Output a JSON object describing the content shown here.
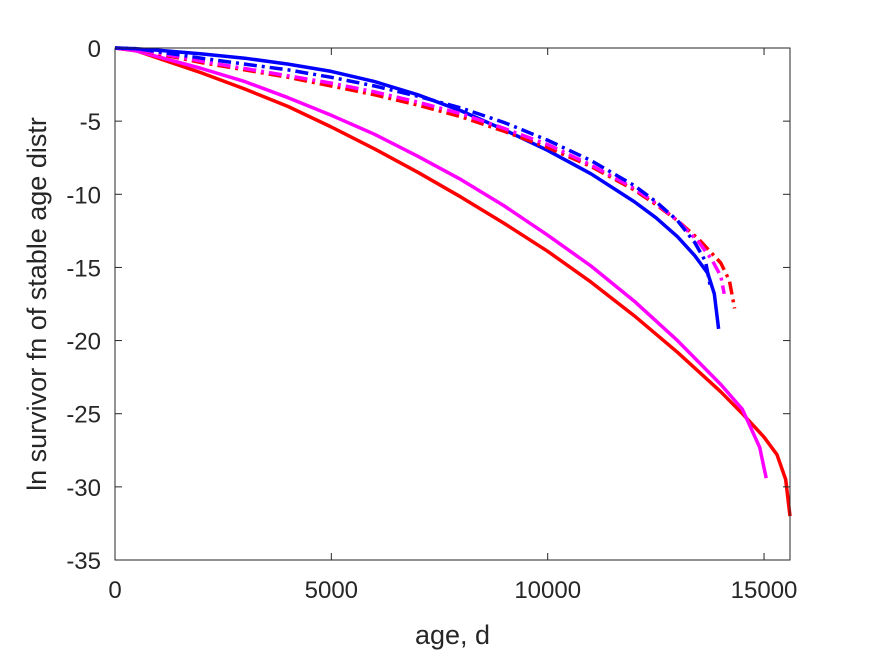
{
  "chart_data": {
    "type": "line",
    "title": "",
    "xlabel": "age, d",
    "ylabel": "ln survivor fn of stable age distr",
    "xlim": [
      0,
      15600
    ],
    "ylim": [
      -35,
      0
    ],
    "xticks": [
      0,
      5000,
      10000,
      15000
    ],
    "xtick_labels": [
      "0",
      "5000",
      "10000",
      "15000"
    ],
    "yticks": [
      0,
      -5,
      -10,
      -15,
      -20,
      -25,
      -30,
      -35
    ],
    "ytick_labels": [
      "0",
      "-5",
      "-10",
      "-15",
      "-20",
      "-25",
      "-30",
      "-35"
    ],
    "grid": false,
    "legend": "none",
    "series": [
      {
        "color": "#ff0000",
        "style": "solid",
        "x": [
          0,
          500,
          1000,
          2000,
          3000,
          4000,
          5000,
          6000,
          7000,
          8000,
          9000,
          10000,
          11000,
          12000,
          13000,
          14000,
          14500,
          15000,
          15300,
          15500,
          15600
        ],
        "y": [
          0,
          -0.2,
          -0.7,
          -1.7,
          -2.8,
          -4.0,
          -5.4,
          -6.9,
          -8.5,
          -10.2,
          -12.0,
          -13.9,
          -16.0,
          -18.3,
          -20.8,
          -23.5,
          -25.0,
          -26.6,
          -27.8,
          -29.5,
          -32.0
        ]
      },
      {
        "color": "#ff00ff",
        "style": "solid",
        "x": [
          0,
          500,
          1000,
          2000,
          3000,
          4000,
          5000,
          6000,
          7000,
          8000,
          9000,
          10000,
          11000,
          12000,
          13000,
          14000,
          14500,
          14900,
          15050
        ],
        "y": [
          0,
          -0.2,
          -0.6,
          -1.4,
          -2.3,
          -3.4,
          -4.6,
          -5.9,
          -7.4,
          -9.0,
          -10.8,
          -12.8,
          -14.9,
          -17.3,
          -20.0,
          -23.0,
          -24.7,
          -27.3,
          -29.4
        ]
      },
      {
        "color": "#0000ff",
        "style": "solid",
        "x": [
          0,
          500,
          1000,
          2000,
          3000,
          4000,
          5000,
          6000,
          7000,
          8000,
          9000,
          10000,
          11000,
          12000,
          12500,
          13000,
          13400,
          13700,
          13850,
          13950
        ],
        "y": [
          0,
          -0.05,
          -0.15,
          -0.4,
          -0.7,
          -1.1,
          -1.6,
          -2.3,
          -3.2,
          -4.3,
          -5.6,
          -7.0,
          -8.6,
          -10.5,
          -11.6,
          -12.9,
          -14.2,
          -15.4,
          -16.8,
          -19.2
        ]
      },
      {
        "color": "#ff0000",
        "style": "dashdot",
        "x": [
          0,
          500,
          1000,
          2000,
          3000,
          4000,
          5000,
          6000,
          7000,
          8000,
          9000,
          10000,
          11000,
          12000,
          12500,
          13000,
          13500,
          14000,
          14200,
          14320
        ],
        "y": [
          0,
          -0.1,
          -0.4,
          -1.0,
          -1.5,
          -2.0,
          -2.6,
          -3.2,
          -3.9,
          -4.7,
          -5.7,
          -6.8,
          -8.1,
          -9.7,
          -10.7,
          -11.8,
          -13.1,
          -14.7,
          -15.9,
          -17.8
        ]
      },
      {
        "color": "#ff00ff",
        "style": "dashdot",
        "x": [
          0,
          500,
          1000,
          2000,
          3000,
          4000,
          5000,
          6000,
          7000,
          8000,
          9000,
          10000,
          11000,
          12000,
          12500,
          13000,
          13500,
          13800,
          14000,
          14080
        ],
        "y": [
          0,
          -0.1,
          -0.35,
          -0.9,
          -1.4,
          -1.9,
          -2.4,
          -3.0,
          -3.7,
          -4.5,
          -5.5,
          -6.6,
          -8.0,
          -9.6,
          -10.6,
          -11.8,
          -13.3,
          -14.5,
          -15.6,
          -16.8
        ]
      },
      {
        "color": "#0000ff",
        "style": "dashdot",
        "x": [
          0,
          500,
          1000,
          2000,
          3000,
          4000,
          5000,
          6000,
          7000,
          8000,
          9000,
          10000,
          11000,
          12000,
          12500,
          13000,
          13400,
          13650,
          13750
        ],
        "y": [
          0,
          -0.05,
          -0.25,
          -0.7,
          -1.1,
          -1.5,
          -2.0,
          -2.6,
          -3.3,
          -4.1,
          -5.1,
          -6.3,
          -7.7,
          -9.4,
          -10.5,
          -11.8,
          -13.3,
          -14.6,
          -16.2
        ]
      }
    ]
  }
}
